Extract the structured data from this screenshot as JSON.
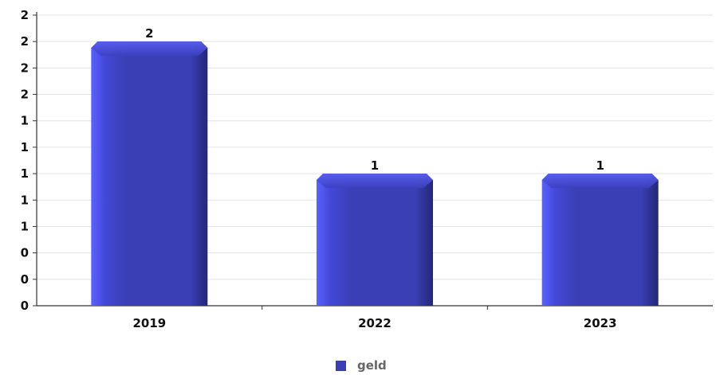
{
  "chart_data": {
    "type": "bar",
    "categories": [
      "2019",
      "2022",
      "2023"
    ],
    "series": [
      {
        "name": "geld",
        "values": [
          2,
          1,
          1
        ],
        "color": "#3a3fb5"
      }
    ],
    "data_labels": [
      "2",
      "1",
      "1"
    ],
    "y_tick_labels": [
      "0",
      "0",
      "0",
      "1",
      "1",
      "1",
      "1",
      "1",
      "2",
      "2",
      "2",
      "2"
    ],
    "ylim": [
      0,
      2.2
    ],
    "grid": true,
    "legend_position": "bottom-center"
  }
}
